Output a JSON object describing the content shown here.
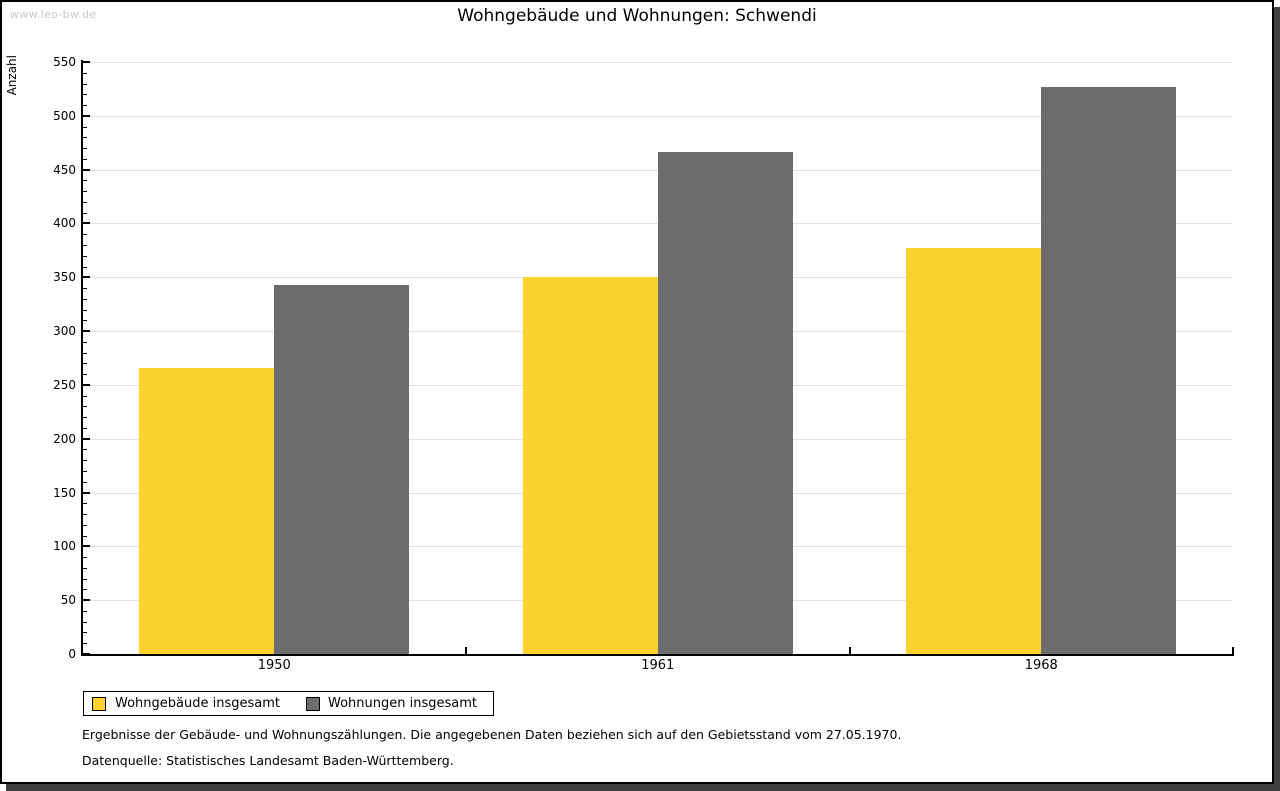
{
  "window": {
    "watermark": "www.leo-bw.de"
  },
  "title": "Wohngebäude und Wohnungen: Schwendi",
  "chart_data": {
    "type": "bar",
    "title": "Wohngebäude und Wohnungen: Schwendi",
    "xlabel": "",
    "ylabel": "Anzahl",
    "categories": [
      "1950",
      "1961",
      "1968"
    ],
    "series": [
      {
        "name": "Wohngebäude insgesamt",
        "color": "#FCD32E",
        "values": [
          266,
          350,
          377
        ]
      },
      {
        "name": "Wohnungen insgesamt",
        "color": "#6C6C6C",
        "values": [
          343,
          466,
          527
        ]
      }
    ],
    "ylim": [
      0,
      550
    ],
    "ytick_step": 50,
    "ytick_minor_step": 10,
    "grid": "horizontal-major",
    "legend_position": "bottom-left"
  },
  "footer": {
    "line1": "Ergebnisse der Gebäude- und Wohnungszählungen. Die angegebenen Daten beziehen sich auf den Gebietsstand vom 27.05.1970.",
    "line2": "Datenquelle: Statistisches Landesamt Baden-Württemberg."
  },
  "colors": {
    "background": "#FFFFFF",
    "axis": "#000000",
    "grid": "#E1E1E1",
    "watermark": "#C9C9C9",
    "page_shadow": "#3F3F3F"
  }
}
